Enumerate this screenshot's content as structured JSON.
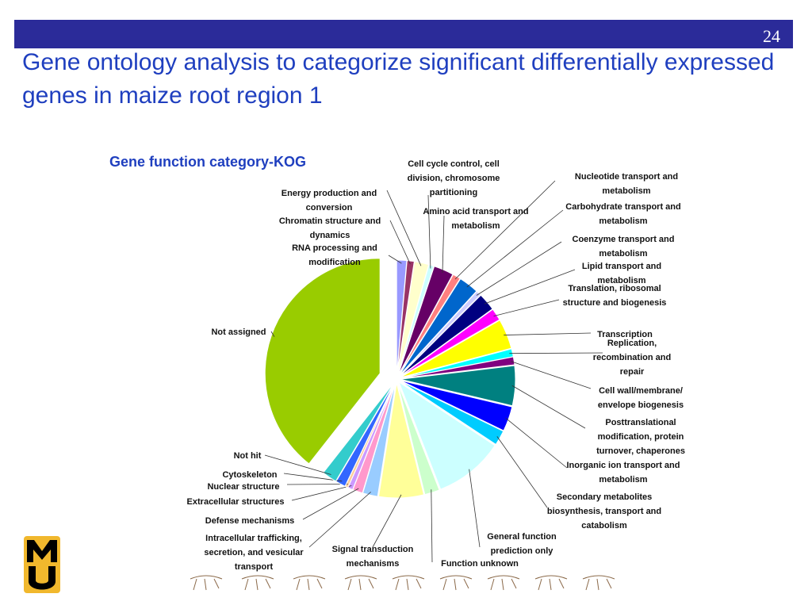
{
  "slide": {
    "page_number": "24",
    "title": "Gene ontology analysis to categorize significant differentially expressed genes in maize root region 1"
  },
  "chart_data": {
    "type": "pie",
    "title": "Gene function category-KOG",
    "categories": [
      "RNA processing and modification",
      "Chromatin structure and dynamics",
      "Energy production and conversion",
      "Cell cycle control, cell division, chromosome partitioning",
      "Amino acid transport and metabolism",
      "Nucleotide transport and metabolism",
      "Carbohydrate transport and metabolism",
      "Coenzyme transport and metabolism",
      "Lipid transport and metabolism",
      "Translation, ribosomal structure and biogenesis",
      "Transcription",
      "Replication, recombination and repair",
      "Cell wall/membrane/ envelope biogenesis",
      "Posttranslational modification, protein turnover, chaperones",
      "Inorganic ion transport and metabolism",
      "Secondary metabolites biosynthesis, transport and catabolism",
      "General function prediction only",
      "Function unknown",
      "Signal transduction mechanisms",
      "Intracellular trafficking, secretion, and vesicular transport",
      "Defense mechanisms",
      "Extracellular structures",
      "Nuclear structure",
      "Cytoskeleton",
      "Not hit",
      "Not assigned"
    ],
    "values": [
      1.4,
      1,
      2,
      0.7,
      2.8,
      1.1,
      2.8,
      0.7,
      2.5,
      1.7,
      4.2,
      1.1,
      1.1,
      5.6,
      3.5,
      2.1,
      9.8,
      2.1,
      6.3,
      2.1,
      1.4,
      0.7,
      0.4,
      1.4,
      2.1,
      39.4
    ],
    "colors": [
      "#9999ff",
      "#993366",
      "#ffffcc",
      "#ccffff",
      "#660066",
      "#ff8080",
      "#0066cc",
      "#ccccff",
      "#000080",
      "#ff00ff",
      "#ffff00",
      "#00ffff",
      "#800080",
      "#008080",
      "#0000ff",
      "#00ccff",
      "#ccffff",
      "#ccffcc",
      "#ffff99",
      "#99ccff",
      "#ff99cc",
      "#cc99ff",
      "#ffcc99",
      "#3366ff",
      "#33cccc",
      "#99cc00"
    ]
  }
}
